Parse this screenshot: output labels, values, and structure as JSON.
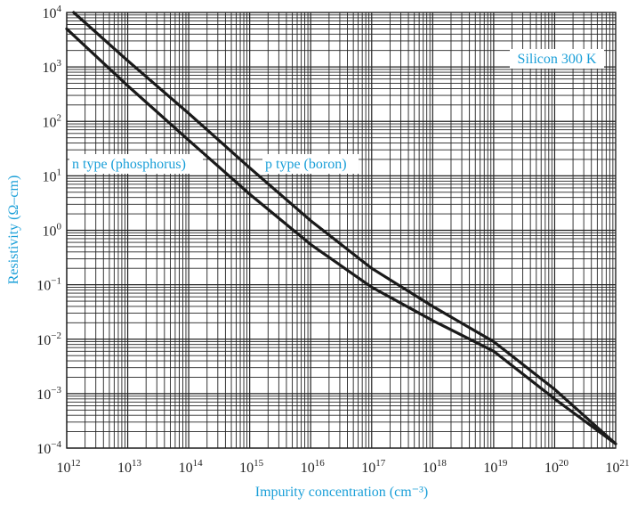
{
  "chart_data": {
    "type": "line",
    "xscale": "log",
    "yscale": "log",
    "xlim": [
      1000000000000.0,
      1e+21
    ],
    "ylim": [
      0.0001,
      10000.0
    ],
    "grid": true,
    "xlabel": "Impurity concentration (cm⁻³)",
    "ylabel": "Resistivity (Ω–cm)",
    "x_ticks": [
      {
        "base": "10",
        "exp": "12"
      },
      {
        "base": "10",
        "exp": "13"
      },
      {
        "base": "10",
        "exp": "14"
      },
      {
        "base": "10",
        "exp": "15"
      },
      {
        "base": "10",
        "exp": "16"
      },
      {
        "base": "10",
        "exp": "17"
      },
      {
        "base": "10",
        "exp": "18"
      },
      {
        "base": "10",
        "exp": "19"
      },
      {
        "base": "10",
        "exp": "20"
      },
      {
        "base": "10",
        "exp": "21"
      }
    ],
    "y_ticks": [
      {
        "base": "10",
        "exp": "−4"
      },
      {
        "base": "10",
        "exp": "−3"
      },
      {
        "base": "10",
        "exp": "−2"
      },
      {
        "base": "10",
        "exp": "−1"
      },
      {
        "base": "10",
        "exp": "0"
      },
      {
        "base": "10",
        "exp": "1"
      },
      {
        "base": "10",
        "exp": "2"
      },
      {
        "base": "10",
        "exp": "3"
      },
      {
        "base": "10",
        "exp": "4"
      }
    ],
    "annotations": {
      "title_box": "Silicon 300 K",
      "n_label": "n type (phosphorus)",
      "p_label": "p type (boron)"
    },
    "series": [
      {
        "name": "n type (phosphorus)",
        "x": [
          1000000000000.0,
          10000000000000.0,
          100000000000000.0,
          1000000000000000.0,
          1e+16,
          1e+17,
          1e+18,
          1e+19,
          1e+20,
          1e+21
        ],
        "y": [
          5000,
          450,
          45,
          4.6,
          0.55,
          0.09,
          0.022,
          0.006,
          0.0008,
          0.00012
        ]
      },
      {
        "name": "p type (boron)",
        "x": [
          1300000000000.0,
          10000000000000.0,
          100000000000000.0,
          1000000000000000.0,
          1e+16,
          1e+17,
          1e+18,
          1e+19,
          1e+20,
          1e+21
        ],
        "y": [
          10000,
          1300,
          140,
          14,
          1.5,
          0.2,
          0.04,
          0.009,
          0.0012,
          0.00012
        ]
      }
    ]
  }
}
